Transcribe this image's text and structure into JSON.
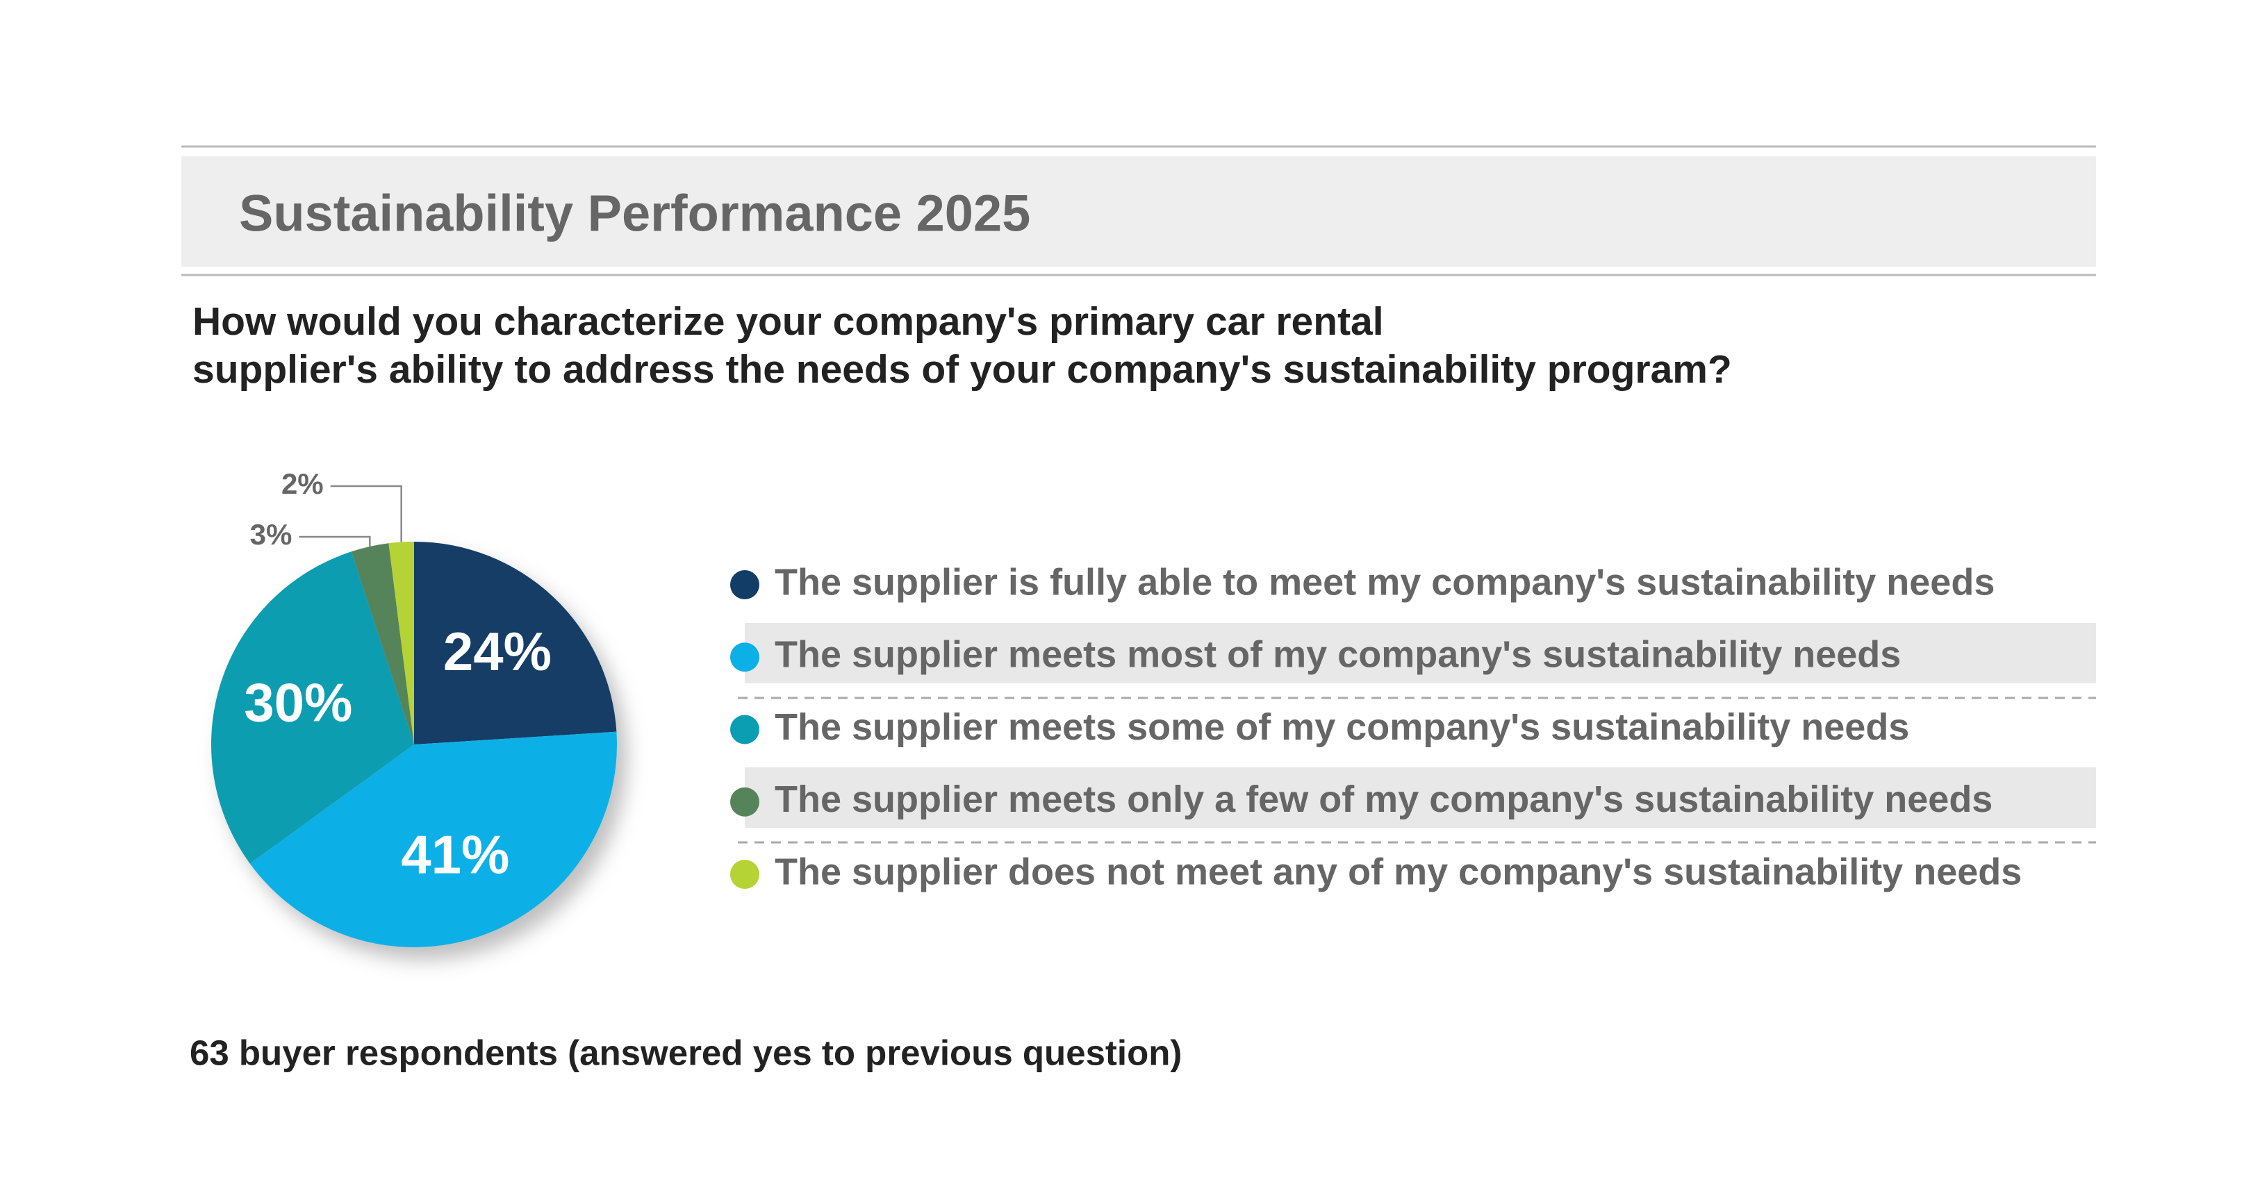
{
  "chart_data": {
    "type": "pie",
    "title": "Sustainability Performance 2025",
    "question": [
      "How would you characterize your company's primary car rental",
      "supplier's ability to address the needs of your company's sustainability program?"
    ],
    "categories": [
      "The supplier is fully able to meet my company's sustainability needs",
      "The supplier meets most of my company's sustainability needs",
      "The supplier meets some of my company's sustainability needs",
      "The supplier meets only a few of my company's sustainability needs",
      "The supplier does not meet any of my company's sustainability needs"
    ],
    "values": [
      24,
      41,
      30,
      3,
      2
    ],
    "value_labels": [
      "24%",
      "41%",
      "30%",
      "3%",
      "2%"
    ],
    "colors": [
      "#123d66",
      "#0ab0e6",
      "#0b9db1",
      "#55845a",
      "#b5d334"
    ],
    "footnote": "63 buyer respondents (answered yes to previous question)"
  }
}
